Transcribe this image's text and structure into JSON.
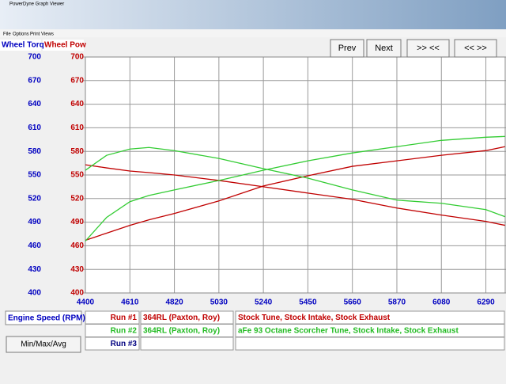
{
  "window": {
    "title": "PowerDyne Graph Viewer",
    "menu": [
      "File",
      "Options",
      "Print Views"
    ]
  },
  "buttons": [
    "Prev",
    "Next",
    ">> <<",
    "<< >>"
  ],
  "chart_data": {
    "type": "line",
    "ylabel": "Wheel Torq",
    "y2label": "Wheel Pow",
    "xlabel": "Engine Speed (RPM)",
    "x": [
      4400,
      4500,
      4610,
      4700,
      4820,
      5030,
      5240,
      5450,
      5660,
      5870,
      6080,
      6290,
      6380
    ],
    "xlim": [
      4400,
      6385
    ],
    "xticks": [
      4400,
      4610,
      4820,
      5030,
      5240,
      5450,
      5660,
      5870,
      6080,
      6290
    ],
    "ylim": [
      400,
      700
    ],
    "yticks": [
      400,
      430,
      460,
      490,
      520,
      550,
      580,
      610,
      640,
      670,
      700
    ],
    "y2lim": [
      400,
      700
    ],
    "y2ticks": [
      400,
      430,
      460,
      490,
      520,
      550,
      580,
      610,
      640,
      670,
      700
    ],
    "ylabel_color": "#0000c0",
    "y2label_color": "#c00000",
    "grid": true,
    "series": [
      {
        "color": "#c00000",
        "values": [
          563,
          559,
          555,
          553,
          550,
          543,
          535,
          527,
          519,
          508,
          499,
          491,
          486
        ]
      },
      {
        "color": "#c00000",
        "axis": "y2",
        "values": [
          467,
          476,
          486,
          493,
          501,
          517,
          536,
          549,
          561,
          568,
          575,
          581,
          586
        ]
      },
      {
        "color": "#33cc33",
        "values": [
          556,
          575,
          583,
          585,
          581,
          571,
          558,
          546,
          531,
          518,
          514,
          506,
          497
        ]
      },
      {
        "color": "#33cc33",
        "axis": "y2",
        "values": [
          466,
          496,
          516,
          524,
          531,
          543,
          556,
          568,
          578,
          586,
          594,
          598,
          599
        ]
      }
    ]
  },
  "runs": [
    {
      "label": "Run #1",
      "vehicle": "364RL (Paxton, Roy)",
      "description": "Stock Tune, Stock Intake, Stock Exhaust",
      "color": "#c00000"
    },
    {
      "label": "Run #2",
      "vehicle": "364RL (Paxton, Roy)",
      "description": "aFe 93 Octane Scorcher Tune, Stock Intake, Stock Exhaust",
      "color": "#22bb22"
    },
    {
      "label": "Run #3",
      "color": "#000080"
    }
  ],
  "min_max_button": "Min/Max/Avg"
}
